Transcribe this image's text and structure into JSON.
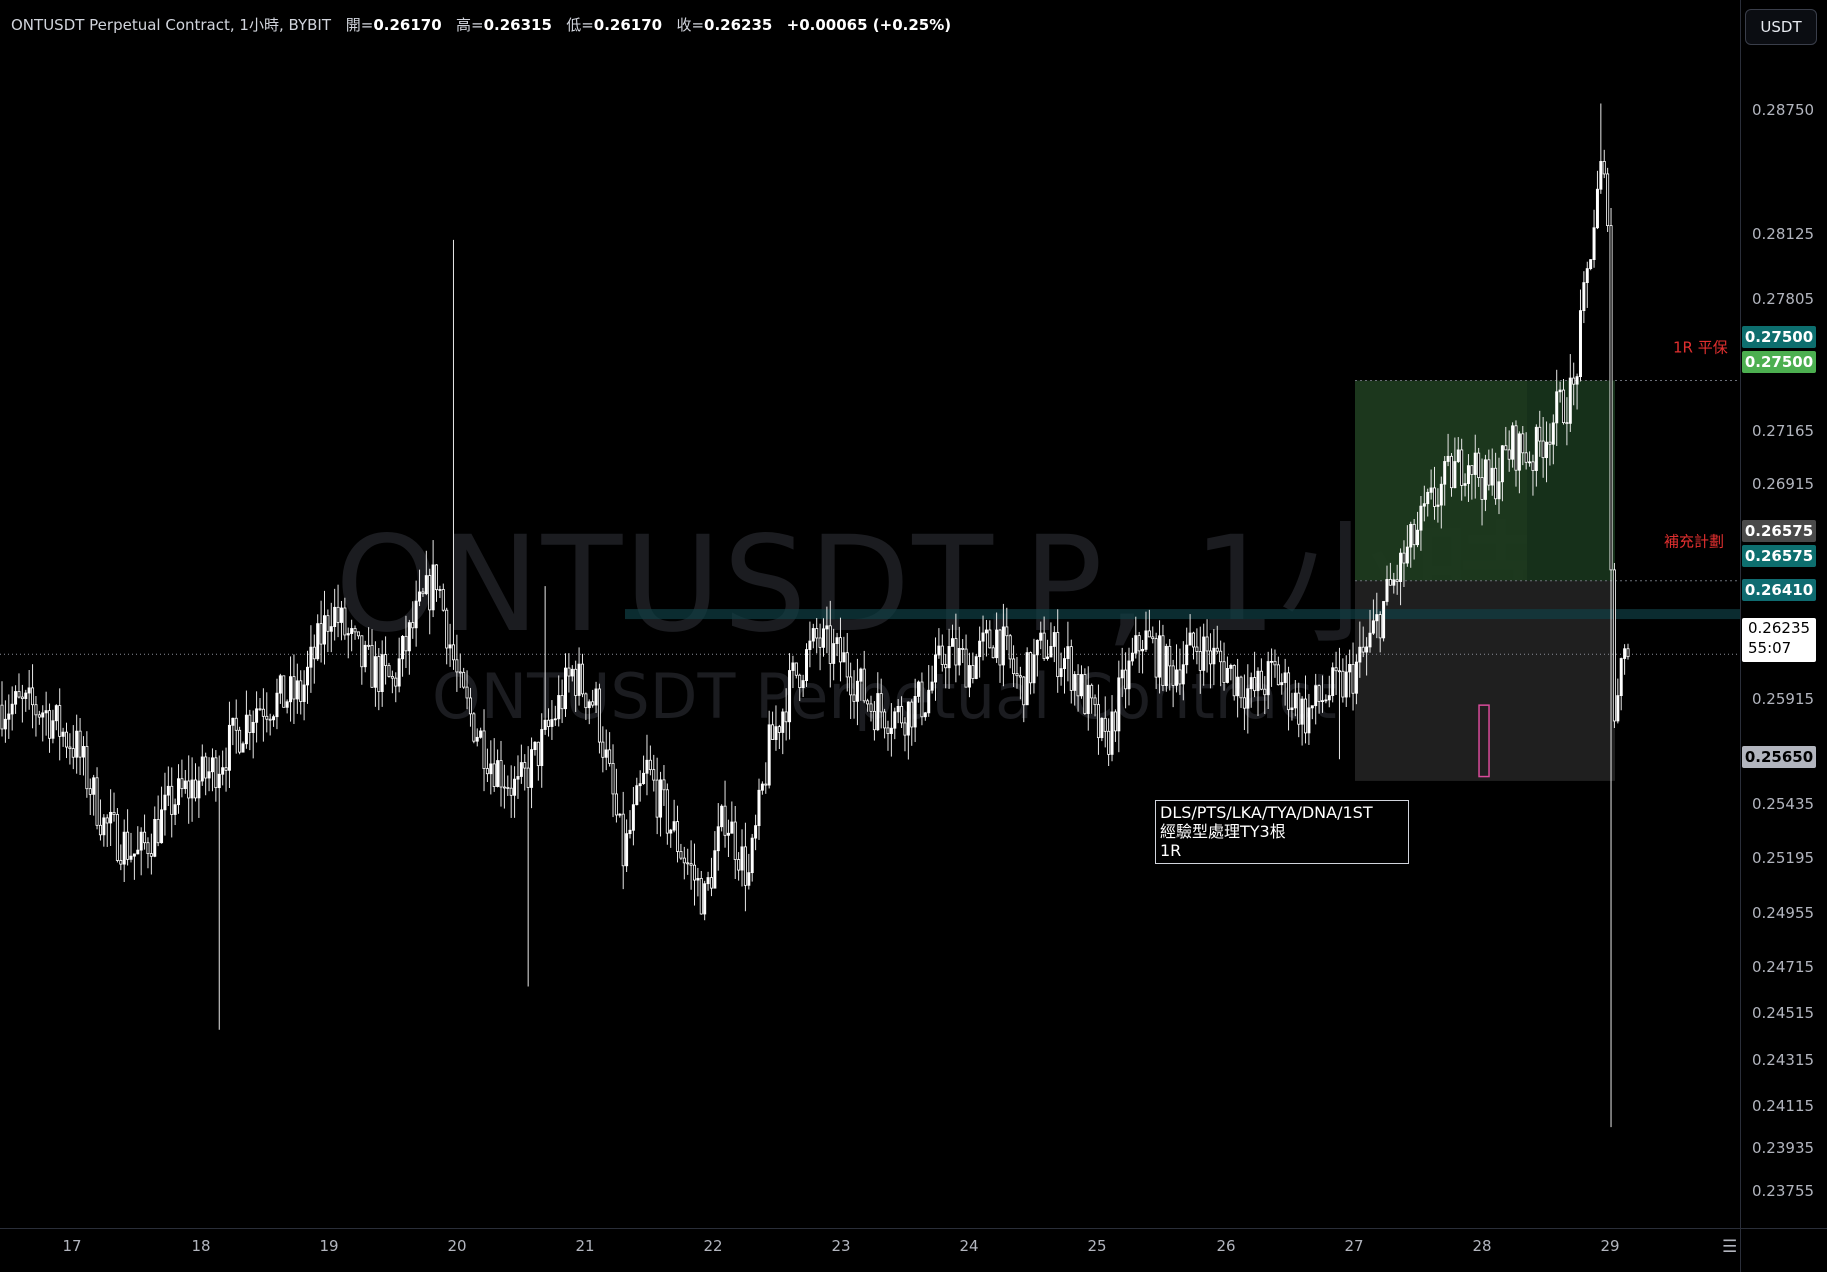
{
  "header": {
    "symbol": "ONTUSDT Perpetual Contract, 1小時, BYBIT",
    "open_label": "開=",
    "open": "0.26170",
    "high_label": "高=",
    "high": "0.26315",
    "low_label": "低=",
    "low": "0.26170",
    "close_label": "收=",
    "close": "0.26235",
    "change": "+0.00065 (+0.25%)"
  },
  "currency_button": "USDT",
  "watermark": {
    "line1": "ONTUSDT.P, 1小時",
    "line2": "ONTUSDT Perpetual Contract"
  },
  "price_axis_ticks": [
    "0.28750",
    "0.28125",
    "0.27805",
    "0.27165",
    "0.26915",
    "0.25915",
    "0.25435",
    "0.25195",
    "0.24955",
    "0.24715",
    "0.24515",
    "0.24315",
    "0.24115",
    "0.23935",
    "0.23755"
  ],
  "time_axis_ticks": [
    "17",
    "18",
    "19",
    "20",
    "21",
    "22",
    "23",
    "24",
    "25",
    "26",
    "27",
    "28",
    "29"
  ],
  "badges": {
    "tp_1": "0.27500",
    "tp_2": "0.27500",
    "entry_1": "0.26575",
    "entry_2": "0.26575",
    "level": "0.26410",
    "stop": "0.25650",
    "last_price": "0.26235",
    "countdown": "55:07"
  },
  "labels": {
    "tp_label": "1R 平保",
    "entry_label": "補充計劃"
  },
  "note": {
    "line1": "DLS/PTS/LKA/TYA/DNA/1ST",
    "line2": "經驗型處理TY3根",
    "line3": "1R"
  },
  "colors": {
    "background": "#000000",
    "candle": "#ffffff",
    "target_zone": "#1d3a1f",
    "stop_zone": "#1f1f1f",
    "tp_badge_teal": "#0d6e6e",
    "tp_badge_green": "#4caf50",
    "level_badge": "#0f6b70",
    "stop_badge": "#b2b5be",
    "red_label": "#e02f2f"
  },
  "chart_data": {
    "type": "candlestick",
    "symbol": "ONTUSDT.P",
    "interval": "1小時",
    "x_ticks": [
      "17",
      "18",
      "19",
      "20",
      "21",
      "22",
      "23",
      "24",
      "25",
      "26",
      "27",
      "28",
      "29"
    ],
    "ylim": [
      0.2365,
      0.2895
    ],
    "last_price": 0.26235,
    "close_path": [
      [
        0,
        0.26
      ],
      [
        12,
        0.2598
      ],
      [
        22,
        0.258
      ],
      [
        30,
        0.2545
      ],
      [
        40,
        0.253
      ],
      [
        50,
        0.2555
      ],
      [
        62,
        0.257
      ],
      [
        75,
        0.26
      ],
      [
        88,
        0.2605
      ],
      [
        97,
        0.2645
      ],
      [
        106,
        0.262
      ],
      [
        115,
        0.261
      ],
      [
        122,
        0.264
      ],
      [
        128,
        0.266
      ],
      [
        135,
        0.2605
      ],
      [
        144,
        0.2575
      ],
      [
        152,
        0.256
      ],
      [
        160,
        0.2585
      ],
      [
        168,
        0.2615
      ],
      [
        175,
        0.26
      ],
      [
        183,
        0.253
      ],
      [
        190,
        0.257
      ],
      [
        198,
        0.254
      ],
      [
        207,
        0.251
      ],
      [
        213,
        0.255
      ],
      [
        220,
        0.252
      ],
      [
        226,
        0.258
      ],
      [
        233,
        0.2612
      ],
      [
        240,
        0.263
      ],
      [
        248,
        0.262
      ],
      [
        256,
        0.26
      ],
      [
        264,
        0.2595
      ],
      [
        272,
        0.2603
      ],
      [
        278,
        0.2625
      ],
      [
        285,
        0.2618
      ],
      [
        293,
        0.2633
      ],
      [
        300,
        0.2608
      ],
      [
        307,
        0.2628
      ],
      [
        314,
        0.262
      ],
      [
        320,
        0.26
      ],
      [
        325,
        0.258
      ],
      [
        329,
        0.2603
      ],
      [
        336,
        0.2632
      ],
      [
        344,
        0.2615
      ],
      [
        352,
        0.2628
      ],
      [
        360,
        0.2618
      ],
      [
        368,
        0.2605
      ],
      [
        375,
        0.2615
      ],
      [
        384,
        0.2595
      ],
      [
        390,
        0.2605
      ],
      [
        396,
        0.261
      ],
      [
        402,
        0.2625
      ],
      [
        408,
        0.265
      ],
      [
        414,
        0.267
      ],
      [
        420,
        0.269
      ],
      [
        426,
        0.2705
      ],
      [
        432,
        0.2715
      ],
      [
        438,
        0.27
      ],
      [
        445,
        0.272
      ],
      [
        451,
        0.2715
      ],
      [
        458,
        0.2735
      ],
      [
        463,
        0.2745
      ],
      [
        466,
        0.2785
      ],
      [
        468,
        0.2812
      ],
      [
        471,
        0.2845
      ],
      [
        473,
        0.2832
      ],
      [
        474,
        0.2665
      ],
      [
        475,
        0.259
      ],
      [
        477,
        0.263
      ],
      [
        478,
        0.2624
      ]
    ],
    "horizontal_levels": [
      {
        "value": 0.275,
        "label": "1R 平保"
      },
      {
        "value": 0.26575,
        "label": "補充計劃"
      },
      {
        "value": 0.2641
      },
      {
        "value": 0.2565
      }
    ],
    "position_zones": [
      {
        "kind": "target",
        "from": 0.26575,
        "to": 0.275
      },
      {
        "kind": "stop",
        "from": 0.2565,
        "to": 0.26575
      }
    ],
    "annotation": "DLS/PTS/LKA/TYA/DNA/1ST 經驗型處理TY3根 1R"
  }
}
